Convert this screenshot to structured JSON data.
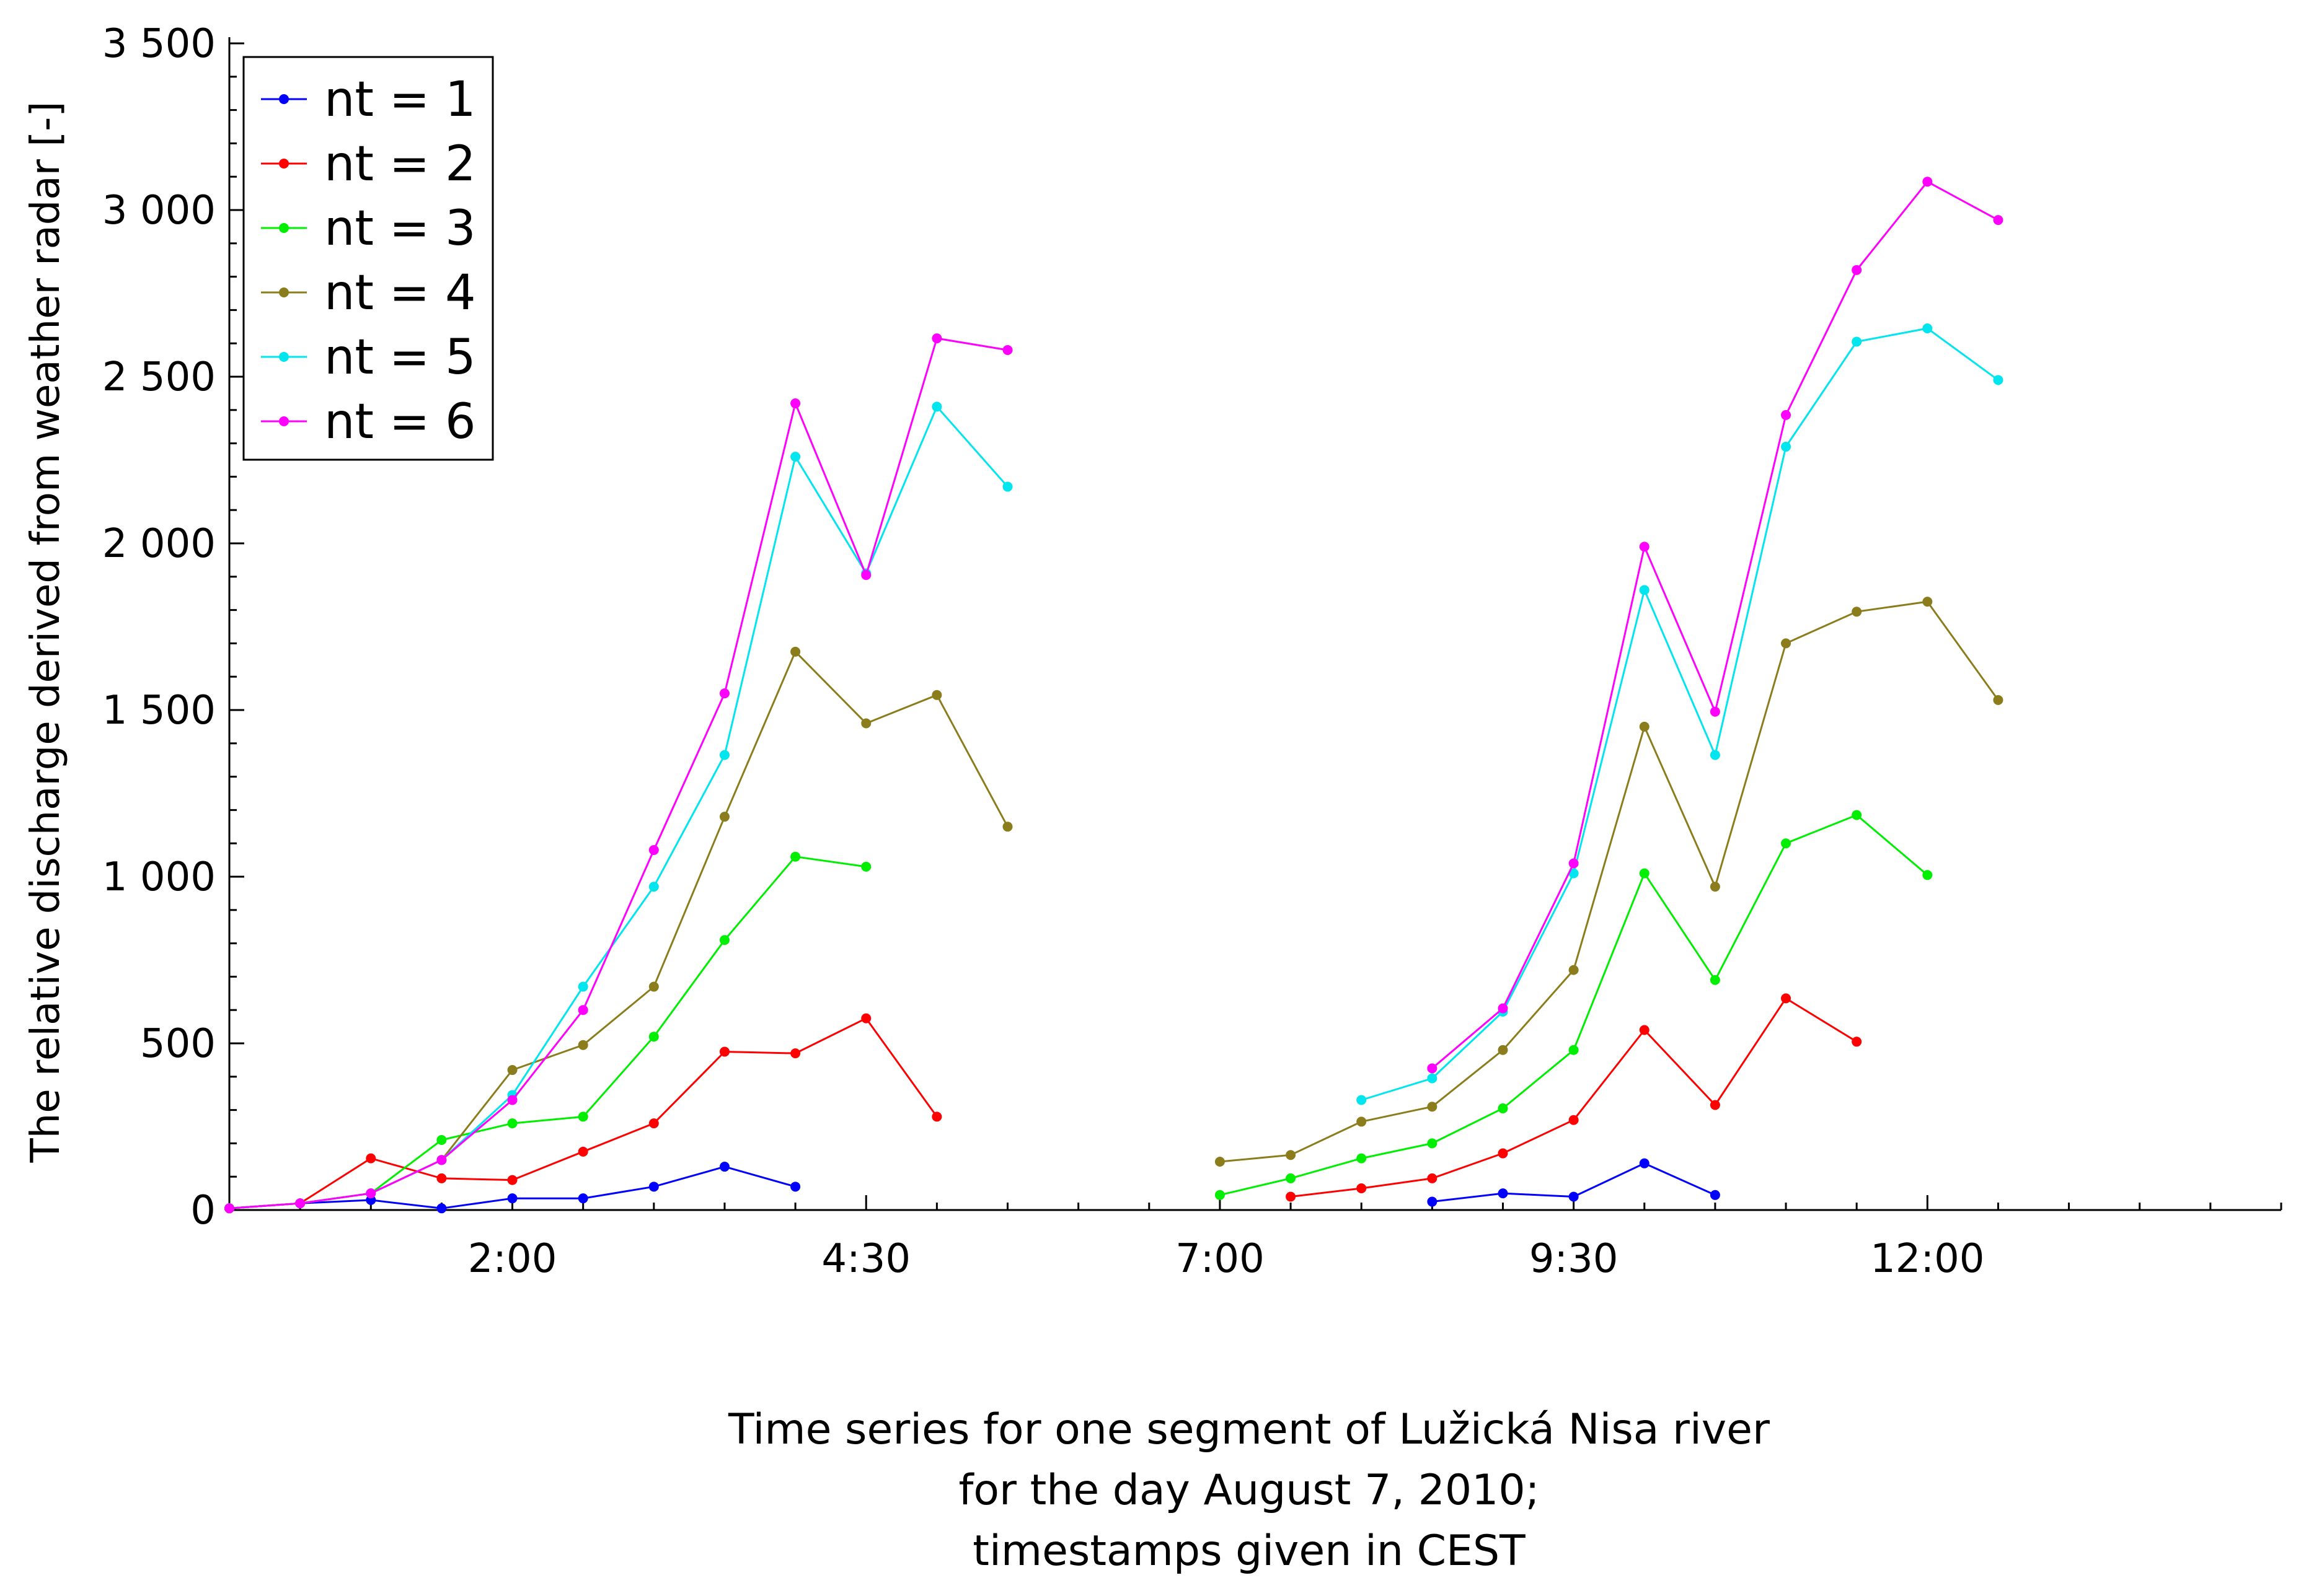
{
  "chart_data": {
    "type": "line",
    "title": "",
    "ylabel": "The relative discharge derived from weather radar [-]",
    "xlabel_lines": [
      "Time series for one segment of Lužická Nisa river",
      "for the day August 7, 2010;",
      "timestamps given in CEST"
    ],
    "x_unit": "minutes since 0:00",
    "xlim": [
      0,
      870
    ],
    "ylim": [
      0,
      3500
    ],
    "x_ticks": [
      {
        "value": 120,
        "label": "2:00"
      },
      {
        "value": 270,
        "label": "4:30"
      },
      {
        "value": 420,
        "label": "7:00"
      },
      {
        "value": 570,
        "label": "9:30"
      },
      {
        "value": 720,
        "label": "12:00"
      }
    ],
    "y_ticks": [
      {
        "value": 0,
        "label": "0"
      },
      {
        "value": 500,
        "label": "500"
      },
      {
        "value": 1000,
        "label": "1 000"
      },
      {
        "value": 1500,
        "label": "1 500"
      },
      {
        "value": 2000,
        "label": "2 000"
      },
      {
        "value": 2500,
        "label": "2 500"
      },
      {
        "value": 3000,
        "label": "3 000"
      },
      {
        "value": 3500,
        "label": "3 500"
      }
    ],
    "grid": false,
    "legend_position": "top-left",
    "series": [
      {
        "name": "nt = 1",
        "color": "#0000ff",
        "segments": [
          [
            [
              0,
              5
            ],
            [
              30,
              20
            ],
            [
              60,
              30
            ],
            [
              90,
              5
            ],
            [
              120,
              35
            ],
            [
              150,
              35
            ],
            [
              180,
              70
            ],
            [
              210,
              130
            ],
            [
              240,
              70
            ]
          ],
          [
            [
              510,
              25
            ],
            [
              540,
              50
            ],
            [
              570,
              40
            ],
            [
              600,
              140
            ],
            [
              630,
              45
            ]
          ]
        ]
      },
      {
        "name": "nt = 2",
        "color": "#ff0000",
        "segments": [
          [
            [
              0,
              5
            ],
            [
              30,
              20
            ],
            [
              60,
              155
            ],
            [
              90,
              95
            ],
            [
              120,
              90
            ],
            [
              150,
              175
            ],
            [
              180,
              260
            ],
            [
              210,
              475
            ],
            [
              240,
              470
            ],
            [
              270,
              575
            ],
            [
              300,
              280
            ]
          ],
          [
            [
              450,
              40
            ],
            [
              480,
              65
            ],
            [
              510,
              95
            ],
            [
              540,
              170
            ],
            [
              570,
              270
            ],
            [
              600,
              540
            ],
            [
              630,
              315
            ],
            [
              660,
              635
            ],
            [
              690,
              505
            ]
          ]
        ]
      },
      {
        "name": "nt = 3",
        "color": "#00ee00",
        "segments": [
          [
            [
              0,
              5
            ],
            [
              30,
              20
            ],
            [
              60,
              50
            ],
            [
              90,
              210
            ],
            [
              120,
              260
            ],
            [
              150,
              280
            ],
            [
              180,
              520
            ],
            [
              210,
              810
            ],
            [
              240,
              1060
            ],
            [
              270,
              1030
            ]
          ],
          [
            [
              420,
              45
            ],
            [
              450,
              95
            ],
            [
              480,
              155
            ],
            [
              510,
              200
            ],
            [
              540,
              305
            ],
            [
              570,
              480
            ],
            [
              600,
              1010
            ],
            [
              630,
              690
            ],
            [
              660,
              1100
            ],
            [
              690,
              1185
            ],
            [
              720,
              1005
            ]
          ]
        ]
      },
      {
        "name": "nt = 4",
        "color": "#8b7d1c",
        "segments": [
          [
            [
              0,
              5
            ],
            [
              30,
              20
            ],
            [
              60,
              50
            ],
            [
              90,
              150
            ],
            [
              120,
              420
            ],
            [
              150,
              495
            ],
            [
              180,
              670
            ],
            [
              210,
              1180
            ],
            [
              240,
              1675
            ],
            [
              270,
              1460
            ],
            [
              300,
              1545
            ],
            [
              330,
              1150
            ]
          ],
          [
            [
              420,
              145
            ],
            [
              450,
              165
            ],
            [
              480,
              265
            ],
            [
              510,
              310
            ],
            [
              540,
              480
            ],
            [
              570,
              720
            ],
            [
              600,
              1450
            ],
            [
              630,
              970
            ],
            [
              660,
              1700
            ],
            [
              690,
              1795
            ],
            [
              720,
              1825
            ],
            [
              750,
              1530
            ]
          ]
        ]
      },
      {
        "name": "nt = 5",
        "color": "#00e5ee",
        "segments": [
          [
            [
              0,
              5
            ],
            [
              30,
              20
            ],
            [
              60,
              50
            ],
            [
              90,
              150
            ],
            [
              120,
              345
            ],
            [
              150,
              670
            ],
            [
              180,
              970
            ],
            [
              210,
              1365
            ],
            [
              240,
              2260
            ],
            [
              270,
              1910
            ],
            [
              300,
              2410
            ],
            [
              330,
              2170
            ]
          ],
          [
            [
              480,
              330
            ],
            [
              510,
              395
            ],
            [
              540,
              595
            ],
            [
              570,
              1010
            ],
            [
              600,
              1860
            ],
            [
              630,
              1365
            ],
            [
              660,
              2290
            ],
            [
              690,
              2605
            ],
            [
              720,
              2645
            ],
            [
              750,
              2490
            ]
          ]
        ]
      },
      {
        "name": "nt = 6",
        "color": "#ff00ff",
        "segments": [
          [
            [
              0,
              5
            ],
            [
              30,
              20
            ],
            [
              60,
              50
            ],
            [
              90,
              150
            ],
            [
              120,
              330
            ],
            [
              150,
              600
            ],
            [
              180,
              1080
            ],
            [
              210,
              1550
            ],
            [
              240,
              2420
            ],
            [
              270,
              1905
            ],
            [
              300,
              2615
            ],
            [
              330,
              2580
            ]
          ],
          [
            [
              510,
              425
            ],
            [
              540,
              605
            ],
            [
              570,
              1040
            ],
            [
              600,
              1990
            ],
            [
              630,
              1495
            ],
            [
              660,
              2385
            ],
            [
              690,
              2820
            ],
            [
              720,
              3085
            ],
            [
              750,
              2970
            ]
          ]
        ]
      }
    ]
  }
}
